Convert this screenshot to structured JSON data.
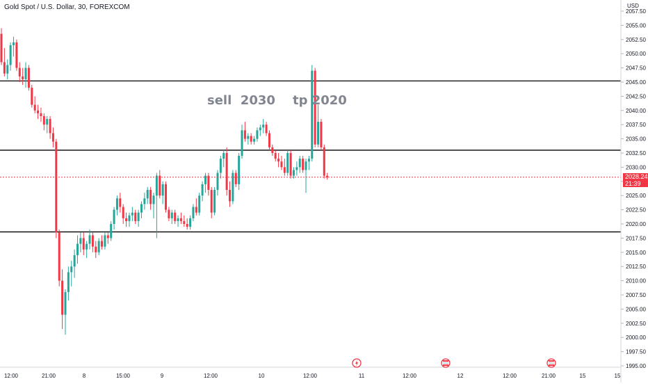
{
  "title": "Gold Spot / U.S. Dollar, 30, FOREXCOM",
  "currency": "USD",
  "annotation": "sell  2030    tp 2020",
  "current_price": {
    "value": 2028.24,
    "label": "2028.24",
    "countdown": "21:39"
  },
  "colors": {
    "up": "#26a69a",
    "down": "#f23645",
    "level_line": "#000000",
    "grid": "#f0f3fa",
    "annotation": "#808590"
  },
  "chart_data": {
    "type": "candlestick",
    "y_axis": {
      "range": [
        1994,
        2059
      ],
      "ticks": [
        "1995.00",
        "1997.50",
        "2000.00",
        "2002.50",
        "2005.00",
        "2007.50",
        "2010.00",
        "2012.50",
        "2015.00",
        "2017.50",
        "2020.00",
        "2022.50",
        "2025.00",
        "2027.50",
        "2030.00",
        "2032.50",
        "2035.00",
        "2037.50",
        "2040.00",
        "2042.50",
        "2045.00",
        "2047.50",
        "2050.00",
        "2052.50",
        "2055.00",
        "2057.50"
      ]
    },
    "x_axis": {
      "ticks": [
        "12:00",
        "21:00",
        "8",
        "15:00",
        "9",
        "12:00",
        "10",
        "12:00",
        "11",
        "12:00",
        "12",
        "12:00",
        "21:00",
        "15",
        "15"
      ]
    },
    "horizontal_levels": [
      2045.2,
      2033.0,
      2018.6
    ],
    "candles": [
      [
        2053.5,
        2054.5,
        2048.0,
        2048.5
      ],
      [
        2048.5,
        2051.0,
        2046.0,
        2046.5
      ],
      [
        2046.5,
        2049.0,
        2045.5,
        2048.0
      ],
      [
        2048.0,
        2052.0,
        2047.0,
        2051.5
      ],
      [
        2051.5,
        2053.0,
        2049.5,
        2052.0
      ],
      [
        2052.0,
        2052.5,
        2047.0,
        2047.5
      ],
      [
        2047.5,
        2048.5,
        2045.0,
        2046.0
      ],
      [
        2046.0,
        2047.5,
        2044.5,
        2045.5
      ],
      [
        2045.5,
        2048.5,
        2044.0,
        2047.5
      ],
      [
        2047.5,
        2048.0,
        2043.5,
        2044.0
      ],
      [
        2044.0,
        2044.5,
        2040.5,
        2041.0
      ],
      [
        2041.0,
        2042.5,
        2039.5,
        2040.0
      ],
      [
        2040.0,
        2041.0,
        2038.5,
        2039.5
      ],
      [
        2039.5,
        2040.5,
        2038.0,
        2039.0
      ],
      [
        2039.0,
        2039.5,
        2036.5,
        2037.5
      ],
      [
        2037.5,
        2039.0,
        2036.0,
        2038.5
      ],
      [
        2038.5,
        2039.0,
        2035.0,
        2036.0
      ],
      [
        2036.0,
        2037.0,
        2033.5,
        2034.5
      ],
      [
        2034.5,
        2035.0,
        2017.5,
        2018.5
      ],
      [
        2018.5,
        2019.0,
        2009.0,
        2010.0
      ],
      [
        2010.0,
        2012.0,
        2001.5,
        2004.0
      ],
      [
        2004.0,
        2008.5,
        2000.5,
        2008.0
      ],
      [
        2008.0,
        2012.5,
        2006.5,
        2011.5
      ],
      [
        2011.5,
        2013.5,
        2009.0,
        2012.5
      ],
      [
        2012.5,
        2015.5,
        2010.5,
        2014.5
      ],
      [
        2014.5,
        2018.0,
        2013.0,
        2016.5
      ],
      [
        2016.5,
        2018.5,
        2015.0,
        2017.5
      ],
      [
        2017.5,
        2018.5,
        2014.5,
        2015.5
      ],
      [
        2015.5,
        2017.0,
        2014.0,
        2016.5
      ],
      [
        2016.5,
        2019.0,
        2015.5,
        2018.0
      ],
      [
        2018.0,
        2018.5,
        2015.0,
        2016.0
      ],
      [
        2016.0,
        2017.0,
        2014.0,
        2015.0
      ],
      [
        2015.0,
        2017.5,
        2014.5,
        2017.0
      ],
      [
        2017.0,
        2018.0,
        2015.5,
        2016.0
      ],
      [
        2016.0,
        2018.5,
        2015.5,
        2018.0
      ],
      [
        2018.0,
        2018.5,
        2016.5,
        2017.5
      ],
      [
        2017.5,
        2020.5,
        2017.0,
        2020.0
      ],
      [
        2020.0,
        2023.0,
        2019.0,
        2022.5
      ],
      [
        2022.5,
        2025.0,
        2021.5,
        2024.5
      ],
      [
        2024.5,
        2025.5,
        2022.0,
        2023.0
      ],
      [
        2023.0,
        2023.5,
        2020.0,
        2021.0
      ],
      [
        2021.0,
        2022.0,
        2019.5,
        2020.5
      ],
      [
        2020.5,
        2022.0,
        2019.5,
        2021.5
      ],
      [
        2021.5,
        2023.0,
        2020.5,
        2022.0
      ],
      [
        2022.0,
        2022.5,
        2020.0,
        2020.5
      ],
      [
        2020.5,
        2022.5,
        2019.5,
        2022.0
      ],
      [
        2022.0,
        2024.0,
        2021.0,
        2023.5
      ],
      [
        2023.5,
        2025.5,
        2022.5,
        2024.5
      ],
      [
        2024.5,
        2026.5,
        2023.5,
        2026.0
      ],
      [
        2026.0,
        2026.5,
        2022.5,
        2023.5
      ],
      [
        2023.5,
        2025.5,
        2021.0,
        2025.0
      ],
      [
        2025.0,
        2029.0,
        2017.5,
        2028.5
      ],
      [
        2028.5,
        2029.5,
        2024.5,
        2025.0
      ],
      [
        2025.0,
        2027.5,
        2023.5,
        2027.0
      ],
      [
        2027.0,
        2027.5,
        2022.0,
        2022.5
      ],
      [
        2022.5,
        2023.0,
        2020.5,
        2021.0
      ],
      [
        2021.0,
        2022.5,
        2020.0,
        2022.0
      ],
      [
        2022.0,
        2022.5,
        2020.0,
        2020.5
      ],
      [
        2020.5,
        2021.5,
        2019.5,
        2021.0
      ],
      [
        2021.0,
        2022.0,
        2020.0,
        2020.5
      ],
      [
        2020.5,
        2021.5,
        2019.5,
        2020.0
      ],
      [
        2020.0,
        2021.0,
        2019.0,
        2019.5
      ],
      [
        2019.5,
        2021.5,
        2019.0,
        2021.0
      ],
      [
        2021.0,
        2023.5,
        2020.5,
        2023.0
      ],
      [
        2023.0,
        2024.5,
        2021.5,
        2022.0
      ],
      [
        2022.0,
        2025.5,
        2021.5,
        2025.0
      ],
      [
        2025.0,
        2027.5,
        2024.0,
        2027.0
      ],
      [
        2027.0,
        2029.0,
        2025.5,
        2028.5
      ],
      [
        2028.5,
        2029.0,
        2025.0,
        2026.0
      ],
      [
        2026.0,
        2026.5,
        2021.0,
        2022.0
      ],
      [
        2022.0,
        2026.5,
        2021.5,
        2026.0
      ],
      [
        2026.0,
        2029.5,
        2025.0,
        2029.0
      ],
      [
        2029.0,
        2032.0,
        2028.0,
        2031.5
      ],
      [
        2031.5,
        2033.0,
        2030.0,
        2032.5
      ],
      [
        2032.5,
        2033.5,
        2025.0,
        2026.0
      ],
      [
        2026.0,
        2027.5,
        2023.0,
        2024.0
      ],
      [
        2024.0,
        2029.5,
        2023.5,
        2029.0
      ],
      [
        2029.0,
        2029.5,
        2026.5,
        2027.0
      ],
      [
        2027.0,
        2032.5,
        2026.0,
        2032.0
      ],
      [
        2032.0,
        2037.5,
        2031.5,
        2036.5
      ],
      [
        2036.5,
        2038.0,
        2034.5,
        2035.0
      ],
      [
        2035.0,
        2036.0,
        2034.0,
        2035.5
      ],
      [
        2035.5,
        2036.0,
        2034.0,
        2034.5
      ],
      [
        2034.5,
        2035.5,
        2034.0,
        2035.0
      ],
      [
        2035.0,
        2037.0,
        2034.5,
        2036.5
      ],
      [
        2036.5,
        2037.5,
        2035.5,
        2037.0
      ],
      [
        2037.0,
        2038.5,
        2036.0,
        2037.5
      ],
      [
        2037.5,
        2038.0,
        2035.5,
        2036.0
      ],
      [
        2036.0,
        2036.5,
        2033.0,
        2033.5
      ],
      [
        2033.5,
        2034.0,
        2032.0,
        2032.5
      ],
      [
        2032.5,
        2033.0,
        2031.0,
        2031.5
      ],
      [
        2031.5,
        2032.5,
        2030.0,
        2031.0
      ],
      [
        2031.0,
        2032.0,
        2029.5,
        2030.0
      ],
      [
        2030.0,
        2031.5,
        2028.5,
        2029.0
      ],
      [
        2029.0,
        2033.0,
        2028.5,
        2032.5
      ],
      [
        2032.5,
        2033.0,
        2028.0,
        2028.5
      ],
      [
        2028.5,
        2030.0,
        2028.0,
        2029.5
      ],
      [
        2029.5,
        2031.0,
        2028.5,
        2030.0
      ],
      [
        2030.0,
        2032.0,
        2029.0,
        2031.5
      ],
      [
        2031.5,
        2032.0,
        2029.0,
        2029.5
      ],
      [
        2029.5,
        2031.5,
        2025.5,
        2031.0
      ],
      [
        2031.0,
        2032.0,
        2029.5,
        2031.5
      ],
      [
        2031.5,
        2048.0,
        2031.0,
        2047.0
      ],
      [
        2047.0,
        2047.5,
        2033.5,
        2034.0
      ],
      [
        2034.0,
        2041.0,
        2033.5,
        2038.0
      ],
      [
        2038.0,
        2038.5,
        2033.0,
        2033.5
      ],
      [
        2033.5,
        2034.0,
        2028.0,
        2028.5
      ],
      [
        2028.5,
        2029.0,
        2027.8,
        2028.24
      ]
    ]
  }
}
